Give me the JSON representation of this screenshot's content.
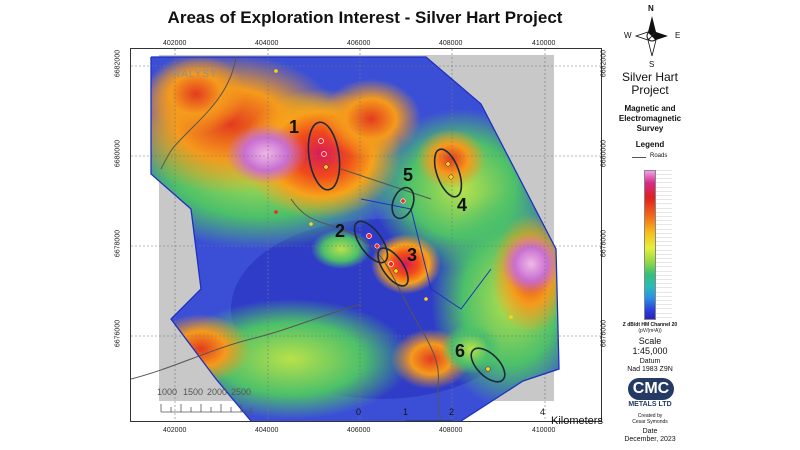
{
  "map": {
    "title": "Areas of Exploration Interest - Silver Hart Project",
    "x_ticks": [
      "402000",
      "404000",
      "406000",
      "408000",
      "410000"
    ],
    "y_ticks": [
      "6682000",
      "6680000",
      "6678000",
      "6676000"
    ],
    "watermark": "NALYST",
    "areas": [
      "1",
      "2",
      "3",
      "4",
      "5",
      "6"
    ],
    "inset_scale_labels": [
      "1000",
      "1500",
      "2000",
      "2500"
    ],
    "km_scale_labels": [
      "0",
      "1",
      "2",
      "4"
    ],
    "km_unit": "Kilometers"
  },
  "legend": {
    "compass": {
      "n": "N",
      "s": "S",
      "e": "E",
      "w": "W"
    },
    "project_line1": "Silver Hart",
    "project_line2": "Project",
    "survey_line1": "Magnetic and",
    "survey_line2": "Electromagnetic",
    "survey_line3": "Survey",
    "legend_title": "Legend",
    "roads_label": "Roads",
    "colorbar_title": "Z dB/dt HM Channel 20",
    "colorbar_unit": "(pV/(m²A))",
    "scale_label": "Scale",
    "scale_value": "1:45,000",
    "datum_label": "Datum",
    "datum_value": "Nad 1983 Z9N",
    "logo_text": "CMC",
    "logo_sub": "METALS LTD",
    "created_by": "Created by",
    "author": "Cesar Symonds",
    "date_label": "Date",
    "date_value": "December, 2023"
  },
  "colors": {
    "outline": "#1f2fbf",
    "roads": "#555555",
    "logo_bg": "#243a64"
  }
}
